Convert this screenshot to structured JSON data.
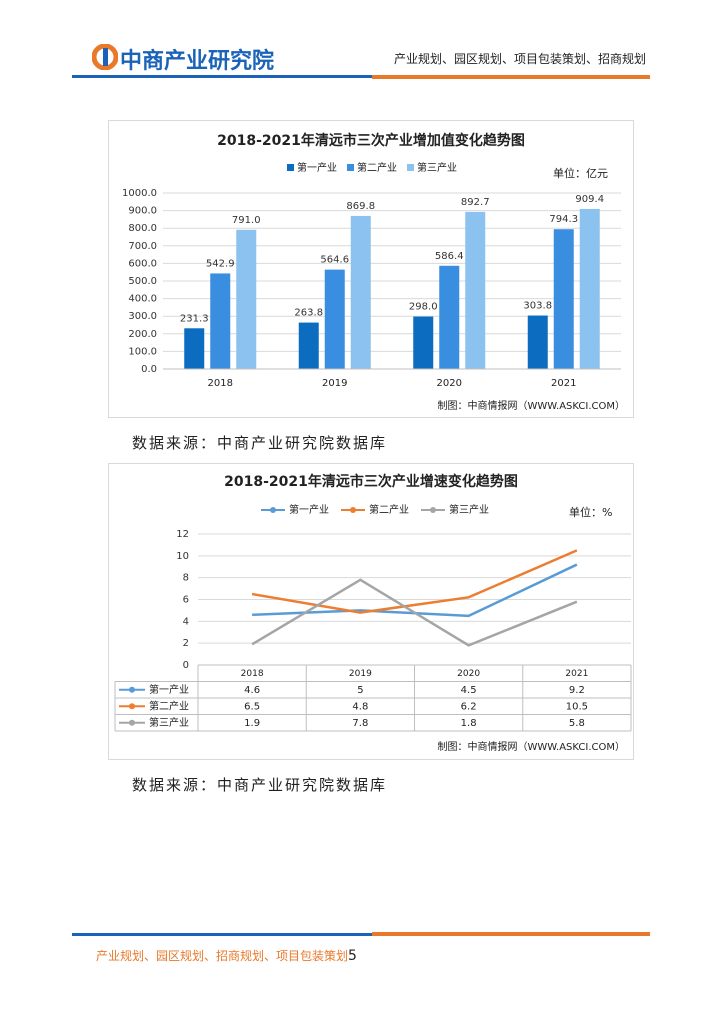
{
  "header": {
    "logo": "中商产业研究院",
    "tagline": "产业规划、园区规划、项目包装策划、招商规划"
  },
  "chart_data": [
    {
      "type": "bar",
      "title": "2018-2021年清远市三次产业增加值变化趋势图",
      "unit": "单位：亿元",
      "credit": "制图：中商情报网（WWW.ASKCI.COM）",
      "categories": [
        "2018",
        "2019",
        "2020",
        "2021"
      ],
      "series": [
        {
          "name": "第一产业",
          "color": "#0c6cc0",
          "values": [
            231.3,
            263.8,
            298.0,
            303.8
          ],
          "value_labels": [
            "231.3",
            "263.8",
            "298.0",
            "303.8"
          ]
        },
        {
          "name": "第二产业",
          "color": "#3a8ee0",
          "values": [
            542.9,
            564.6,
            586.4,
            794.3
          ],
          "value_labels": [
            "542.9",
            "564.6",
            "586.4",
            "794.3"
          ]
        },
        {
          "name": "第三产业",
          "color": "#8cc2f0",
          "values": [
            791.0,
            869.8,
            892.7,
            909.4
          ],
          "value_labels": [
            "791.0",
            "869.8",
            "892.7",
            "909.4"
          ]
        }
      ],
      "ylim": [
        0,
        1000
      ],
      "yticks": [
        {
          "value": 0,
          "label": "0.0"
        },
        {
          "value": 100,
          "label": "100.0"
        },
        {
          "value": 200,
          "label": "200.0"
        },
        {
          "value": 300,
          "label": "300.0"
        },
        {
          "value": 400,
          "label": "400.0"
        },
        {
          "value": 500,
          "label": "500.0"
        },
        {
          "value": 600,
          "label": "600.0"
        },
        {
          "value": 700,
          "label": "700.0"
        },
        {
          "value": 800,
          "label": "800.0"
        },
        {
          "value": 900,
          "label": "900.0"
        },
        {
          "value": 1000,
          "label": "1000.0"
        }
      ],
      "grid": true
    },
    {
      "type": "line",
      "title": "2018-2021年清远市三次产业增速变化趋势图",
      "unit": "单位：%",
      "credit": "制图：中商情报网（WWW.ASKCI.COM）",
      "categories": [
        "2018",
        "2019",
        "2020",
        "2021"
      ],
      "series": [
        {
          "name": "第一产业",
          "color": "#5b9bd5",
          "values": [
            4.6,
            5,
            4.5,
            9.2
          ]
        },
        {
          "name": "第二产业",
          "color": "#ed7d31",
          "values": [
            6.5,
            4.8,
            6.2,
            10.5
          ]
        },
        {
          "name": "第三产业",
          "color": "#a5a5a5",
          "values": [
            1.9,
            7.8,
            1.8,
            5.8
          ]
        }
      ],
      "ylim": [
        0,
        12
      ],
      "yticks": [
        0,
        2,
        4,
        6,
        8,
        10,
        12
      ],
      "grid": true
    }
  ],
  "sources": [
    "数据来源：中商产业研究院数据库",
    "数据来源：中商产业研究院数据库"
  ],
  "footer": {
    "text": "产业规划、园区规划、招商规划、项目包装策划",
    "page": "5"
  }
}
